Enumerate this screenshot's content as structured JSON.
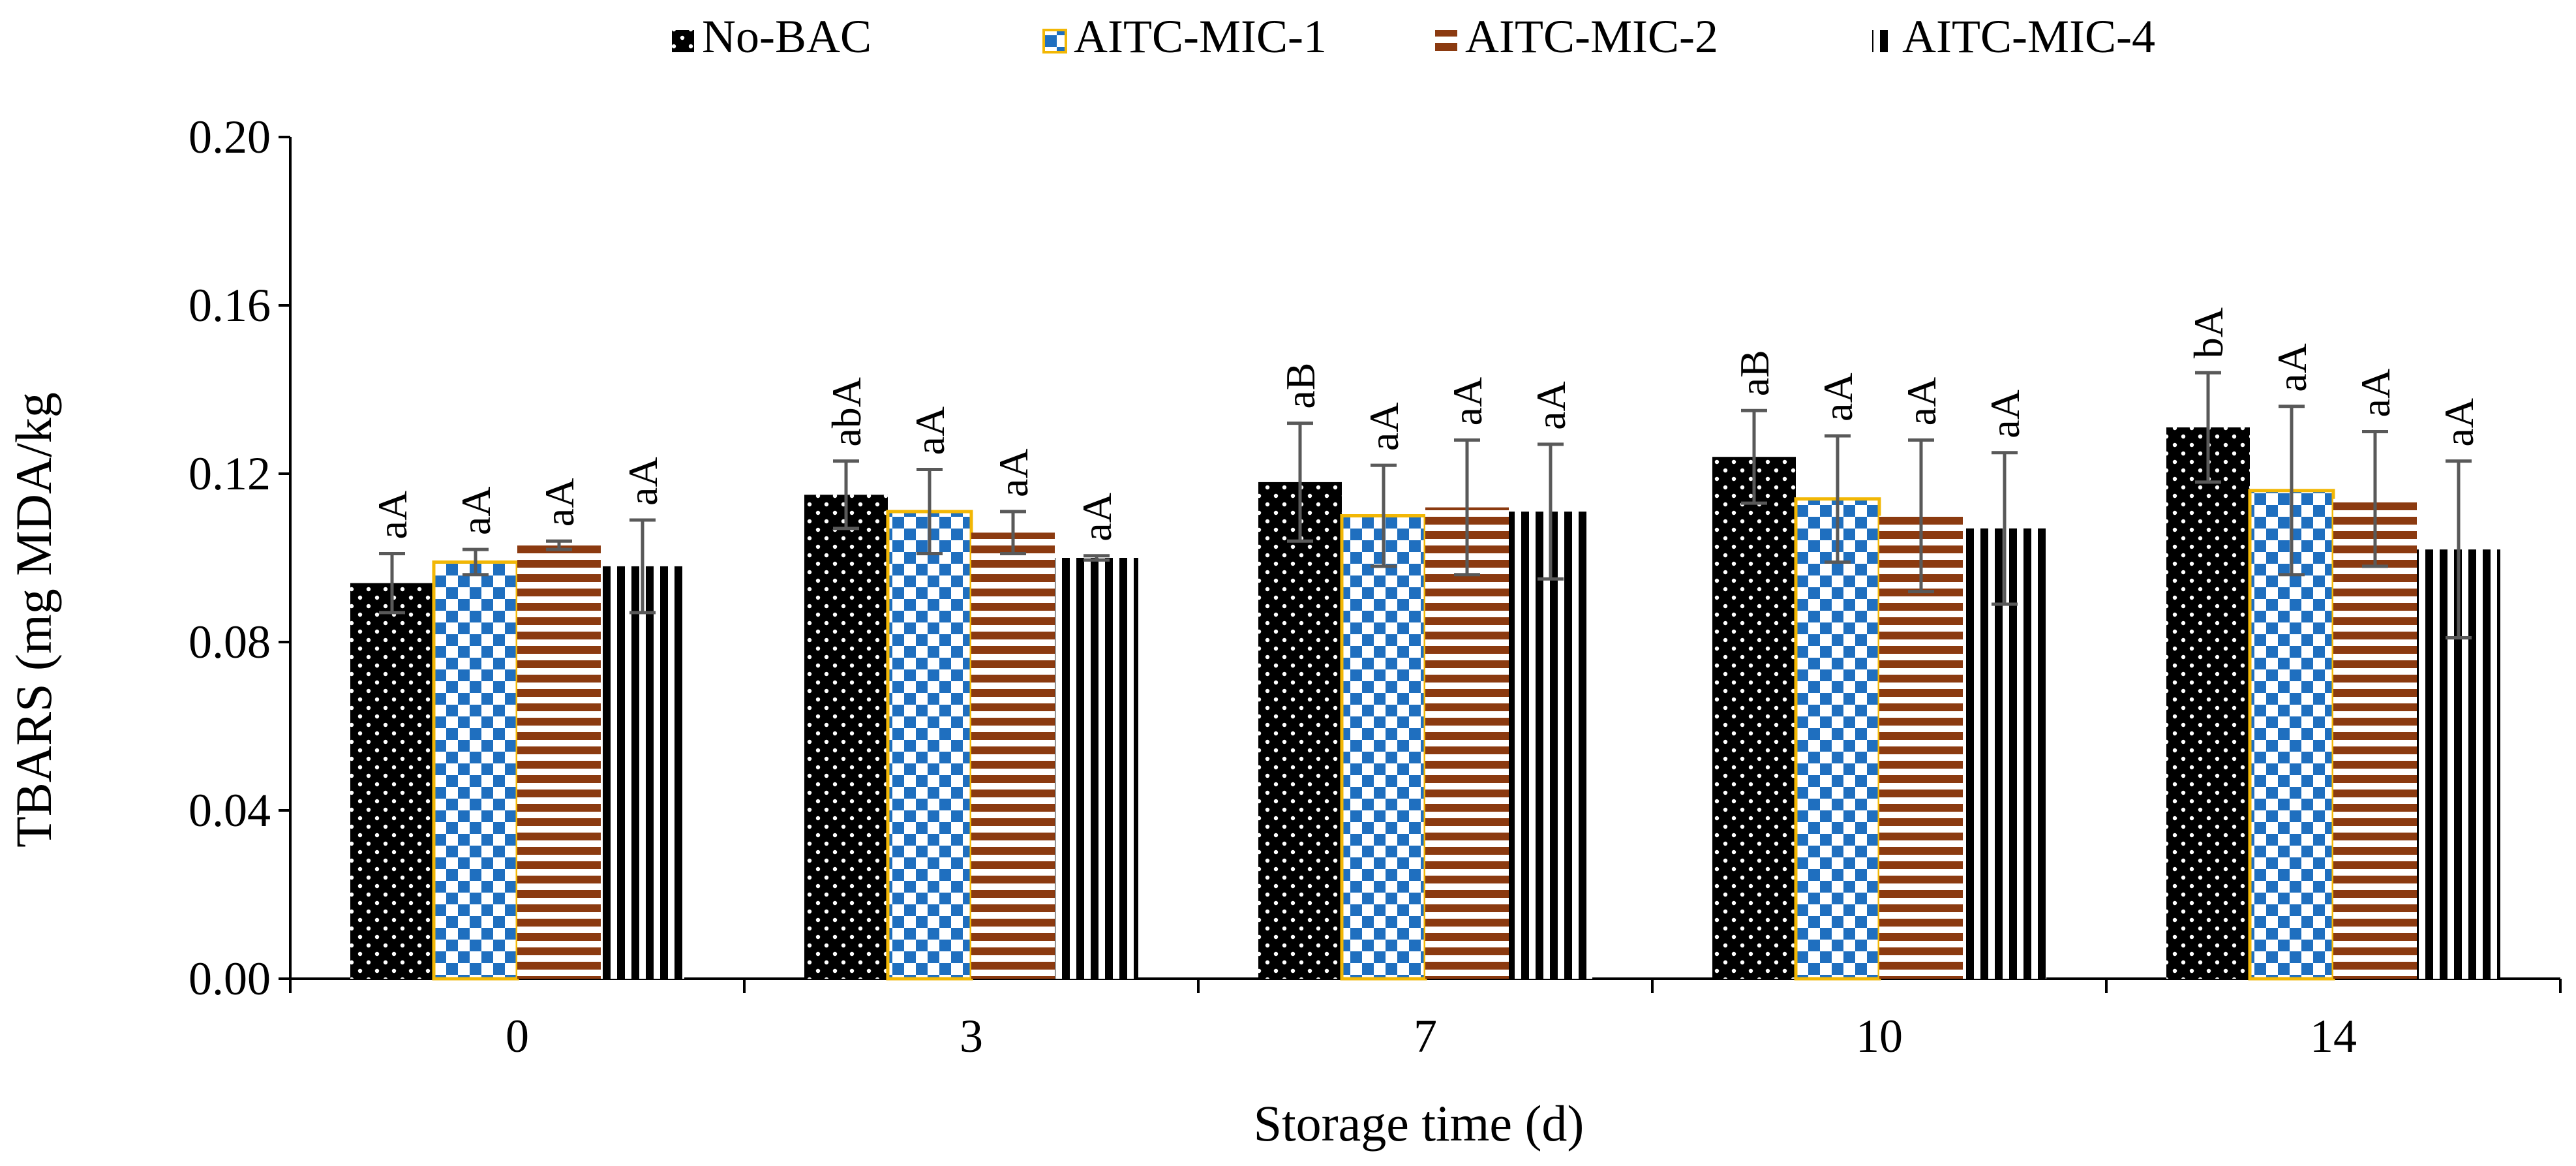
{
  "chart_data": {
    "type": "bar",
    "title": "",
    "xlabel": "Storage time (d)",
    "ylabel": "TBARS (mg MDA/kg",
    "ylim": [
      0,
      0.2
    ],
    "yticks": [
      "0.00",
      "0.04",
      "0.08",
      "0.12",
      "0.16",
      "0.20"
    ],
    "categories": [
      "0",
      "3",
      "7",
      "10",
      "14"
    ],
    "legend_position": "top",
    "series": [
      {
        "name": "No-BAC",
        "pattern": "dots",
        "values": [
          0.094,
          0.115,
          0.118,
          0.124,
          0.131
        ],
        "errors": [
          0.007,
          0.008,
          0.014,
          0.011,
          0.013
        ],
        "labels": [
          "aA",
          "abA",
          "aB",
          "aB",
          "bA"
        ]
      },
      {
        "name": "AITC-MIC-1",
        "pattern": "checker",
        "values": [
          0.099,
          0.111,
          0.11,
          0.114,
          0.116
        ],
        "errors": [
          0.003,
          0.01,
          0.012,
          0.015,
          0.02
        ],
        "labels": [
          "aA",
          "aA",
          "aA",
          "aA",
          "aA"
        ]
      },
      {
        "name": "AITC-MIC-2",
        "pattern": "horizontal-stripes",
        "values": [
          0.103,
          0.106,
          0.112,
          0.11,
          0.114
        ],
        "errors": [
          0.001,
          0.005,
          0.016,
          0.018,
          0.016
        ],
        "labels": [
          "aA",
          "aA",
          "aA",
          "aA",
          "aA"
        ]
      },
      {
        "name": "AITC-MIC-4",
        "pattern": "vertical-stripes",
        "values": [
          0.098,
          0.1,
          0.111,
          0.107,
          0.102
        ],
        "errors": [
          0.011,
          0.0005,
          0.016,
          0.018,
          0.021
        ],
        "labels": [
          "aA",
          "aA",
          "aA",
          "aA",
          "aA"
        ]
      }
    ],
    "colors": {
      "dots_bg": "#000000",
      "dots_fg": "#ffffff",
      "checker_a": "#1f6fbf",
      "checker_b": "#ffffff",
      "checker_border": "#f2b705",
      "stripe_a": "#8b3a10",
      "stripe_b": "#ffffff",
      "vstripe_a": "#000000",
      "vstripe_b": "#ffffff",
      "error_bar": "#595959",
      "axis": "#000000"
    }
  }
}
